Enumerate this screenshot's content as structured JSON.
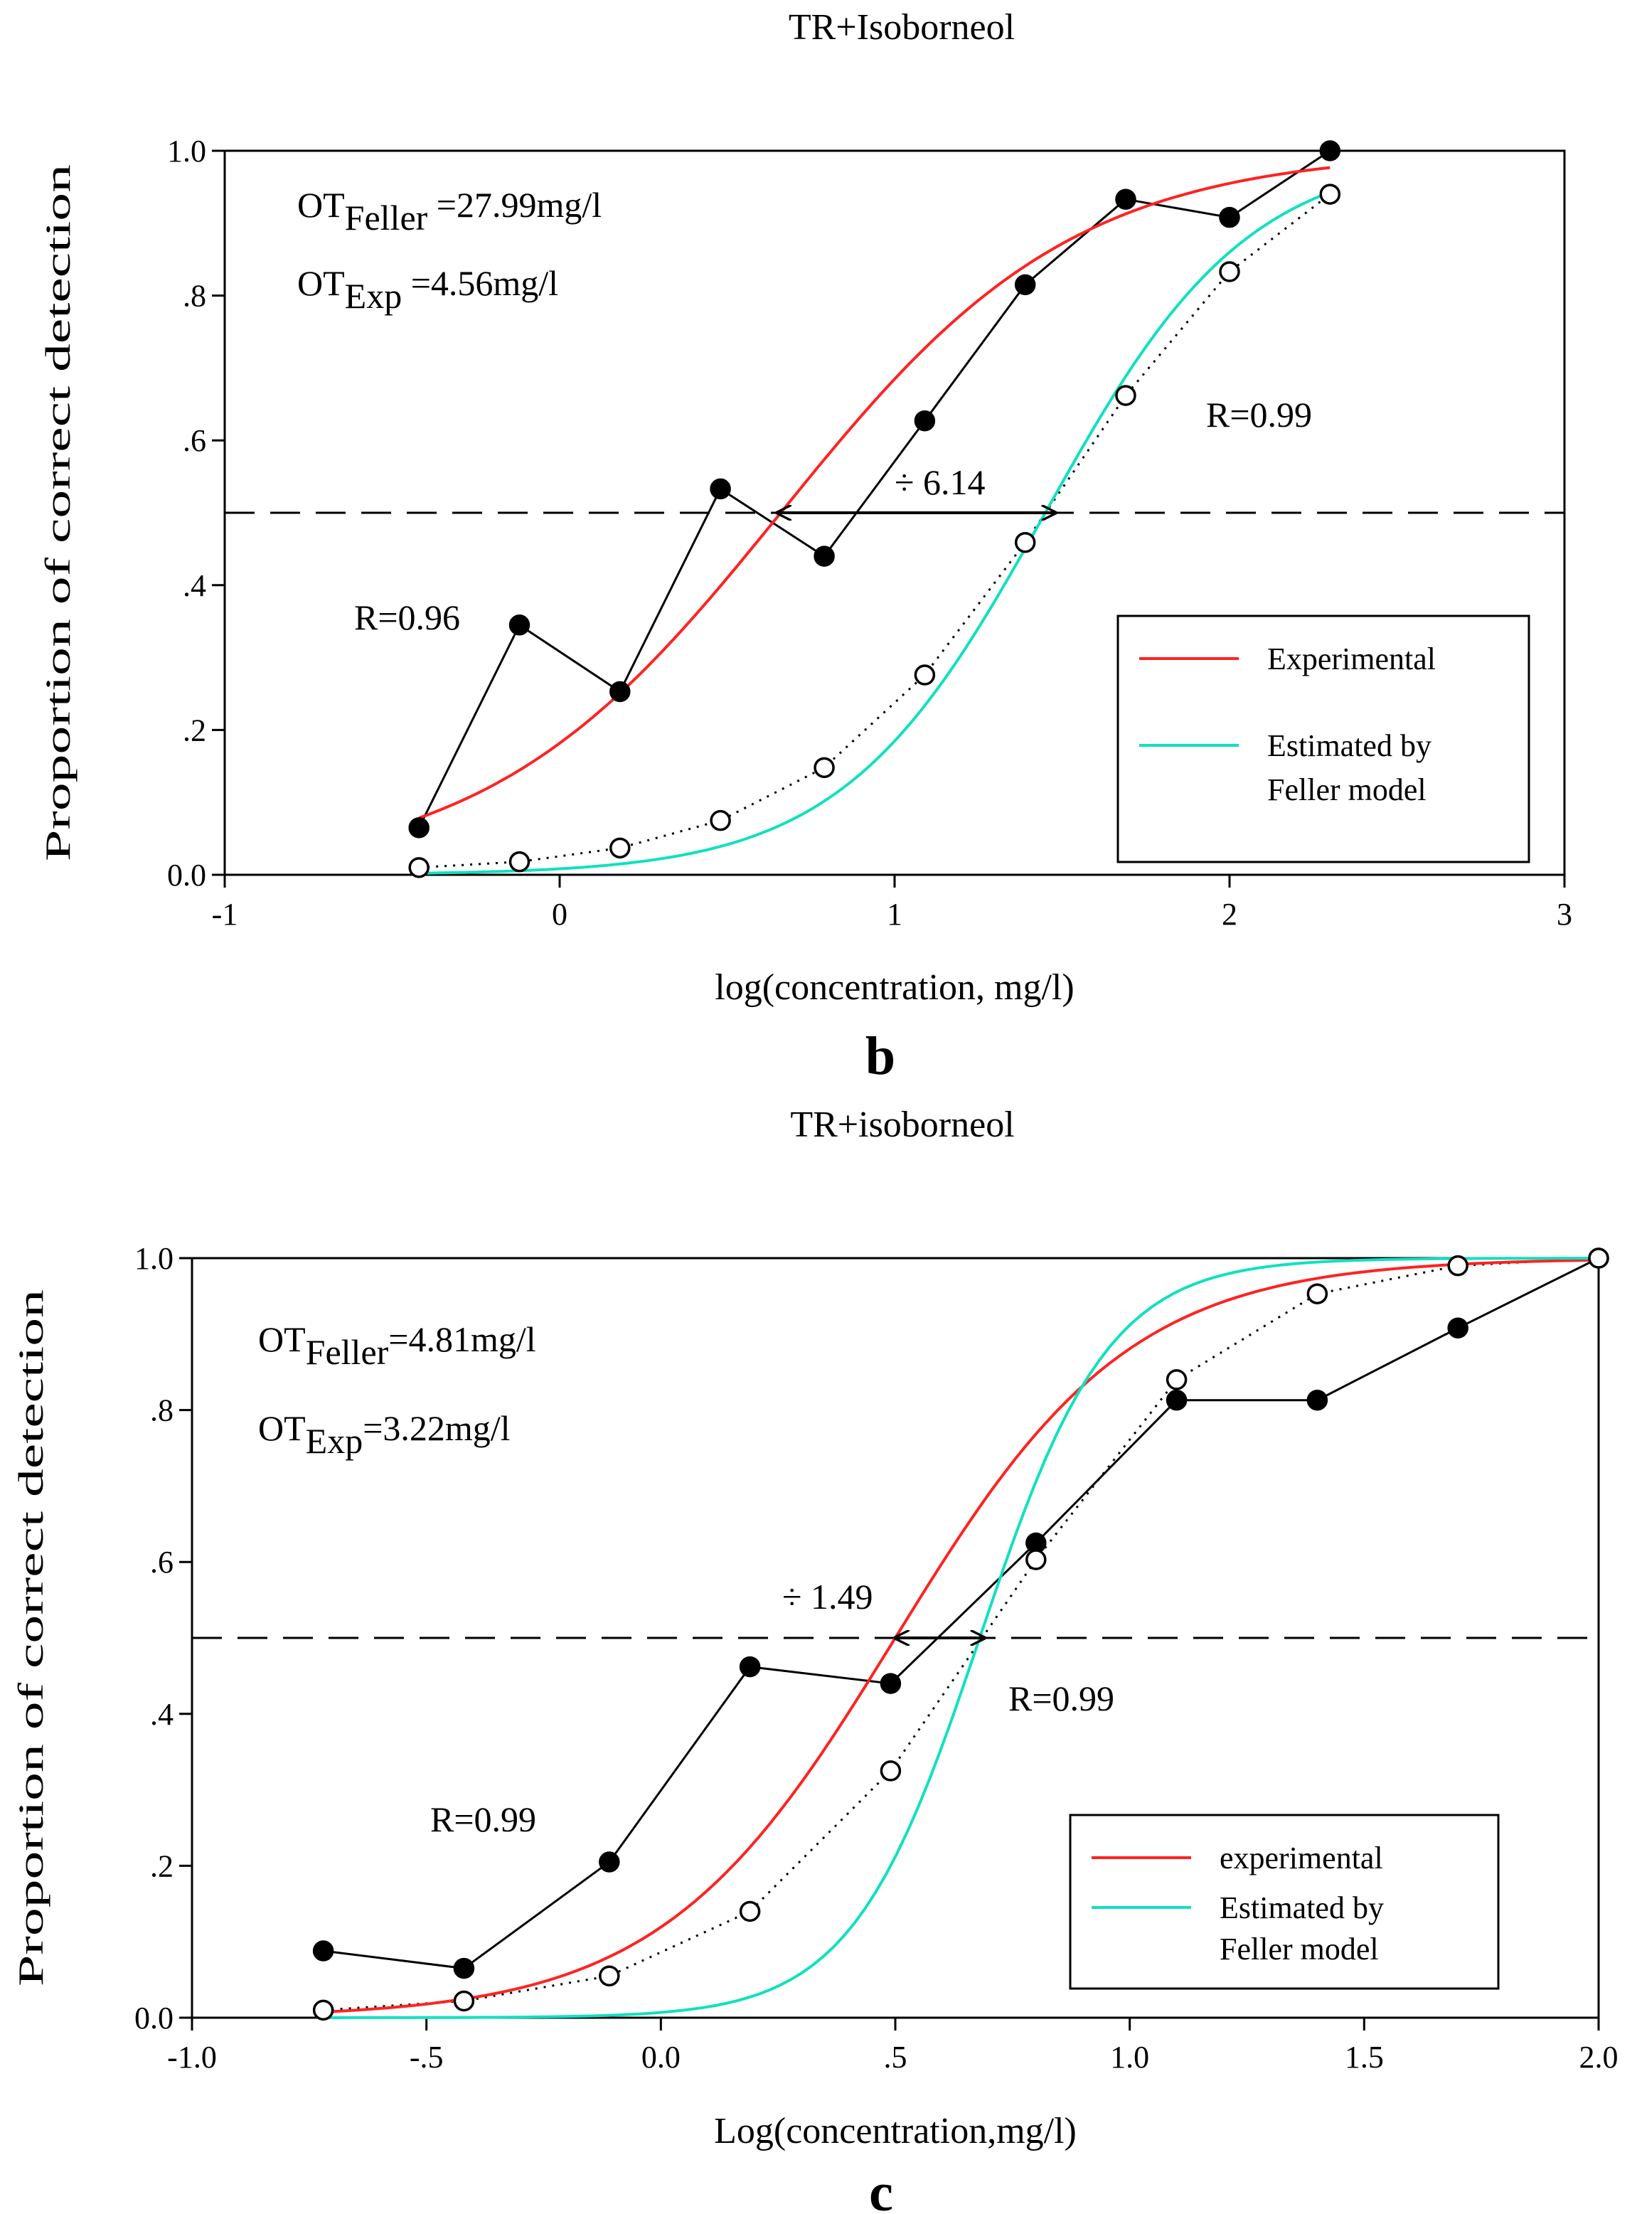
{
  "chart_data": [
    {
      "type": "line",
      "title": "TR+Isoborneol",
      "panel_label": "b",
      "xlabel": "log(concentration, mg/l)",
      "ylabel": "Proportion of correct detection",
      "xlim": [
        -1,
        3
      ],
      "ylim": [
        0,
        1
      ],
      "x_ticks": [
        -1,
        0,
        1,
        2,
        3
      ],
      "x_tick_labels": [
        "-1",
        "0",
        "1",
        "2",
        "3"
      ],
      "y_ticks": [
        0,
        0.2,
        0.4,
        0.6,
        0.8,
        1.0
      ],
      "y_tick_labels": [
        "0.0",
        ".2",
        ".4",
        ".6",
        ".8",
        "1.0"
      ],
      "reference_line_y": 0.5,
      "annotations": {
        "ot_feller": {
          "prefix": "OT",
          "sub": "Feller",
          "value": " =27.99mg/l"
        },
        "ot_exp": {
          "prefix": "OT",
          "sub": "Exp",
          "value": " =4.56mg/l"
        },
        "ratio": "÷ 6.14",
        "r_experimental": "R=0.96",
        "r_feller": "R=0.99"
      },
      "arrow": {
        "from_x": 0.65,
        "to_x": 1.48,
        "y": 0.5
      },
      "legend": {
        "position": "bottom-right",
        "entries": [
          {
            "label": "Experimental",
            "color": "#ff2222"
          },
          {
            "label_lines": [
              "Estimated by",
              "Feller model"
            ],
            "color": "#11e0c0"
          }
        ]
      },
      "series": [
        {
          "name": "Experimental data",
          "style": "filled-markers-line",
          "x": [
            -0.42,
            -0.12,
            0.18,
            0.48,
            0.79,
            1.09,
            1.39,
            1.69,
            2.0,
            2.3
          ],
          "y": [
            0.065,
            0.345,
            0.253,
            0.533,
            0.44,
            0.627,
            0.815,
            0.933,
            0.908,
            1.0
          ]
        },
        {
          "name": "Feller model data",
          "style": "open-markers-dotted",
          "x": [
            -0.42,
            -0.12,
            0.18,
            0.48,
            0.79,
            1.09,
            1.39,
            1.69,
            2.0,
            2.3
          ],
          "y": [
            0.01,
            0.018,
            0.037,
            0.075,
            0.148,
            0.276,
            0.459,
            0.662,
            0.833,
            0.94
          ]
        },
        {
          "name": "Experimental fit",
          "style": "curve",
          "color": "#ff2222",
          "logistic": {
            "x0": 0.66,
            "k": 2.28,
            "x_start": -0.42,
            "x_end": 2.3
          }
        },
        {
          "name": "Estimated by Feller model fit",
          "style": "curve",
          "color": "#11e0c0",
          "logistic": {
            "x0": 1.45,
            "k": 3.3,
            "x_start": -0.42,
            "x_end": 2.3
          }
        }
      ]
    },
    {
      "type": "line",
      "title": "TR+isoborneol",
      "panel_label": "c",
      "xlabel": "Log(concentration,mg/l)",
      "ylabel": "Proportion of correct detection",
      "xlim": [
        -1.0,
        2.0
      ],
      "ylim": [
        0,
        1
      ],
      "x_ticks": [
        -1.0,
        -0.5,
        0.0,
        0.5,
        1.0,
        1.5,
        2.0
      ],
      "x_tick_labels": [
        "-1.0",
        "-.5",
        "0.0",
        ".5",
        "1.0",
        "1.5",
        "2.0"
      ],
      "y_ticks": [
        0,
        0.2,
        0.4,
        0.6,
        0.8,
        1.0
      ],
      "y_tick_labels": [
        "0.0",
        ".2",
        ".4",
        ".6",
        ".8",
        "1.0"
      ],
      "reference_line_y": 0.5,
      "annotations": {
        "ot_feller": {
          "prefix": "OT",
          "sub": "Feller",
          "value": "=4.81mg/l"
        },
        "ot_exp": {
          "prefix": "OT",
          "sub": "Exp",
          "value": "=3.22mg/l"
        },
        "ratio": "÷ 1.49",
        "r_experimental": "R=0.99",
        "r_feller": "R=0.99"
      },
      "arrow": {
        "from_x": 0.5,
        "to_x": 0.69,
        "y": 0.5
      },
      "legend": {
        "position": "bottom-right",
        "entries": [
          {
            "label": "experimental",
            "color": "#ff2222"
          },
          {
            "label_lines": [
              "Estimated by",
              "Feller model"
            ],
            "color": "#11e0c0"
          }
        ]
      },
      "series": [
        {
          "name": "Experimental data",
          "style": "filled-markers-line",
          "x": [
            -0.72,
            -0.42,
            -0.11,
            0.19,
            0.49,
            0.8,
            1.1,
            1.4,
            1.7,
            2.0
          ],
          "y": [
            0.088,
            0.065,
            0.205,
            0.462,
            0.44,
            0.625,
            0.813,
            0.813,
            0.908,
            1.0
          ]
        },
        {
          "name": "Feller model data",
          "style": "open-markers-dotted",
          "x": [
            -0.72,
            -0.42,
            -0.11,
            0.19,
            0.49,
            0.8,
            1.1,
            1.4,
            1.7,
            2.0
          ],
          "y": [
            0.01,
            0.022,
            0.055,
            0.14,
            0.325,
            0.603,
            0.84,
            0.953,
            0.99,
            1.0
          ]
        },
        {
          "name": "Experimental fit",
          "style": "curve",
          "color": "#ff2222",
          "logistic": {
            "x0": 0.5,
            "k": 4.0,
            "x_start": -0.72,
            "x_end": 2.0
          }
        },
        {
          "name": "Estimated by Feller model fit",
          "style": "curve",
          "color": "#11e0c0",
          "logistic": {
            "x0": 0.68,
            "k": 7.3,
            "x_start": -0.72,
            "x_end": 2.0
          }
        }
      ]
    }
  ]
}
